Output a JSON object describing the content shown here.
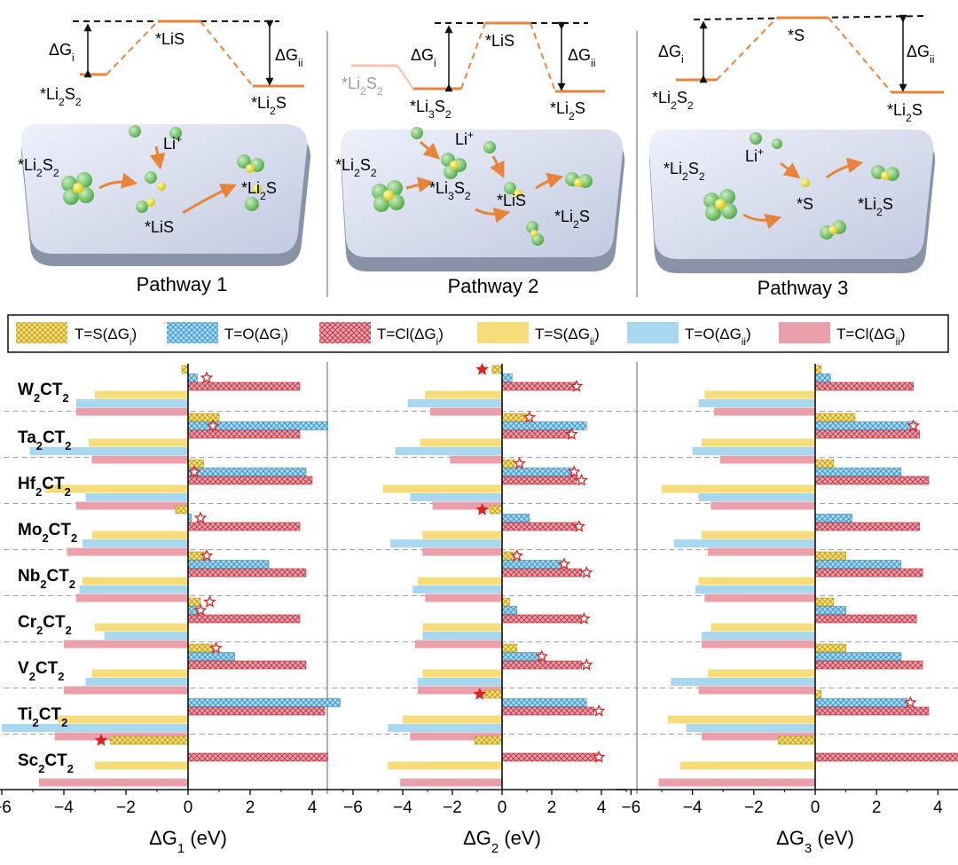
{
  "colors": {
    "S": "#f7dd7a",
    "S_hatch": "#b59a12",
    "O": "#a8d8f0",
    "O_hatch": "#2f8fc0",
    "Cl": "#eaa0aa",
    "Cl_hatch": "#b4303e",
    "level_line": "#e8843a",
    "star": "#e02020",
    "grid": "#9aa0aa"
  },
  "pathways": [
    {
      "title": "Pathway 1",
      "dg_i": "ΔGi",
      "dg_ii": "ΔGii",
      "left_species": "*Li2S2",
      "middle_species": "*LiS",
      "right_species": "*Li2S",
      "surface_labels": [
        "*Li2S2",
        "Li+",
        "*LiS",
        "*Li2S"
      ]
    },
    {
      "title": "Pathway 2",
      "dg_i": "ΔGi",
      "dg_ii": "ΔGii",
      "faded_species": "*Li2S2",
      "left_species": "*Li3S2",
      "middle_species": "*LiS",
      "right_species": "*Li2S",
      "surface_labels": [
        "*Li2S2",
        "Li+",
        "*Li3S2",
        "*LiS",
        "*Li2S"
      ]
    },
    {
      "title": "Pathway 3",
      "dg_i": "ΔGi",
      "dg_ii": "ΔGii",
      "left_species": "*Li2S2",
      "middle_species": "*S",
      "right_species": "*Li2S",
      "surface_labels": [
        "*Li2S2",
        "Li+",
        "*S",
        "*Li2S"
      ]
    }
  ],
  "legend": [
    {
      "label": "T=S(ΔGi)",
      "termination": "S",
      "step": "i"
    },
    {
      "label": "T=O(ΔGi)",
      "termination": "O",
      "step": "i"
    },
    {
      "label": "T=Cl(ΔGi)",
      "termination": "Cl",
      "step": "i"
    },
    {
      "label": "T=S(ΔGii)",
      "termination": "S",
      "step": "ii"
    },
    {
      "label": "T=O(ΔGii)",
      "termination": "O",
      "step": "ii"
    },
    {
      "label": "T=Cl(ΔGii)",
      "termination": "Cl",
      "step": "ii"
    }
  ],
  "chart_data": [
    {
      "type": "bar",
      "orientation": "horizontal",
      "xlabel": "ΔG1 (eV)",
      "xlim": [
        -6.5,
        5
      ],
      "xticks": [
        -6,
        -4,
        -2,
        0,
        2,
        4
      ],
      "categories": [
        "W2CT2",
        "Ta2CT2",
        "Hf2CT2",
        "Mo2CT2",
        "Nb2CT2",
        "Cr2CT2",
        "V2CT2",
        "Ti2CT2",
        "Sc2CT2"
      ],
      "series": [
        {
          "name": "T=S(ΔGi)",
          "values": [
            -0.2,
            1.0,
            0.5,
            -0.4,
            0.6,
            0.4,
            0.8,
            0.0,
            -2.5
          ]
        },
        {
          "name": "T=O(ΔGi)",
          "values": [
            0.3,
            4.5,
            3.8,
            0.1,
            2.6,
            0.3,
            1.5,
            4.9,
            0.0
          ]
        },
        {
          "name": "T=Cl(ΔGi)",
          "values": [
            3.6,
            3.6,
            4.0,
            3.6,
            3.8,
            3.6,
            3.8,
            4.4,
            4.5
          ]
        },
        {
          "name": "T=S(ΔGii)",
          "values": [
            -3.0,
            -3.2,
            -4.6,
            -3.1,
            -3.4,
            -3.0,
            -3.1,
            -4.2,
            -3.0
          ]
        },
        {
          "name": "T=O(ΔGii)",
          "values": [
            -3.6,
            -5.1,
            -3.3,
            -3.4,
            -3.5,
            -2.7,
            -3.3,
            -6.0,
            0.0
          ]
        },
        {
          "name": "T=Cl(ΔGii)",
          "values": [
            -3.6,
            -3.1,
            -3.6,
            -3.9,
            -3.6,
            -4.0,
            -4.0,
            -4.3,
            -4.8
          ]
        }
      ],
      "stars": [
        {
          "category": "W2CT2",
          "series": "T=O(ΔGi)",
          "x": 0.6
        },
        {
          "category": "Ta2CT2",
          "series": "T=O(ΔGi)",
          "x": 0.8
        },
        {
          "category": "Hf2CT2",
          "series": "T=O(ΔGi)",
          "x": 0.2
        },
        {
          "category": "Mo2CT2",
          "series": "T=O(ΔGi)",
          "x": 0.4
        },
        {
          "category": "Nb2CT2",
          "series": "T=S(ΔGi)",
          "x": 0.6
        },
        {
          "category": "Cr2CT2",
          "series": "T=S(ΔGi)",
          "x": 0.7
        },
        {
          "category": "Cr2CT2",
          "series": "T=O(ΔGi)",
          "x": 0.4
        },
        {
          "category": "V2CT2",
          "series": "T=S(ΔGi)",
          "x": 0.9
        },
        {
          "category": "Sc2CT2",
          "series": "T=S(ΔGi)",
          "x": -2.8,
          "filled": true
        }
      ]
    },
    {
      "type": "bar",
      "orientation": "horizontal",
      "xlabel": "ΔG2 (eV)",
      "xlim": [
        -6.5,
        5
      ],
      "xticks": [
        -6,
        -4,
        -2,
        0,
        2,
        4
      ],
      "categories": [
        "W2CT2",
        "Ta2CT2",
        "Hf2CT2",
        "Mo2CT2",
        "Nb2CT2",
        "Cr2CT2",
        "V2CT2",
        "Ti2CT2",
        "Sc2CT2"
      ],
      "series": [
        {
          "name": "T=S(ΔGi)",
          "values": [
            -0.4,
            1.0,
            0.5,
            -0.5,
            0.5,
            0.3,
            0.6,
            -0.7,
            -1.1
          ]
        },
        {
          "name": "T=O(ΔGi)",
          "values": [
            0.4,
            3.4,
            2.9,
            1.1,
            2.4,
            0.6,
            1.6,
            3.4,
            0.0
          ]
        },
        {
          "name": "T=Cl(ΔGi)",
          "values": [
            3.0,
            2.8,
            3.0,
            3.0,
            3.2,
            3.2,
            3.2,
            3.7,
            3.9
          ]
        },
        {
          "name": "T=S(ΔGii)",
          "values": [
            -3.1,
            -3.3,
            -4.8,
            -3.2,
            -3.4,
            -3.2,
            -3.2,
            -4.0,
            -4.6
          ]
        },
        {
          "name": "T=O(ΔGii)",
          "values": [
            -3.8,
            -4.3,
            -3.7,
            -4.5,
            -3.6,
            -3.2,
            -3.4,
            -4.6,
            0.0
          ]
        },
        {
          "name": "T=Cl(ΔGii)",
          "values": [
            -2.9,
            -2.1,
            -2.8,
            -3.2,
            -3.1,
            -3.5,
            -3.4,
            -3.7,
            -4.1
          ]
        }
      ],
      "stars": [
        {
          "category": "W2CT2",
          "series": "T=S(ΔGi)",
          "x": -0.8,
          "filled": true
        },
        {
          "category": "W2CT2",
          "series": "T=Cl(ΔGi)",
          "x": 3.0
        },
        {
          "category": "Ta2CT2",
          "series": "T=S(ΔGi)",
          "x": 1.1
        },
        {
          "category": "Ta2CT2",
          "series": "T=Cl(ΔGi)",
          "x": 2.8
        },
        {
          "category": "Hf2CT2",
          "series": "T=S(ΔGi)",
          "x": 0.7
        },
        {
          "category": "Hf2CT2",
          "series": "T=O(ΔGi)",
          "x": 2.9
        },
        {
          "category": "Hf2CT2",
          "series": "T=Cl(ΔGi)",
          "x": 3.2
        },
        {
          "category": "Mo2CT2",
          "series": "T=S(ΔGi)",
          "x": -0.8,
          "filled": true
        },
        {
          "category": "Mo2CT2",
          "series": "T=Cl(ΔGi)",
          "x": 3.1
        },
        {
          "category": "Nb2CT2",
          "series": "T=S(ΔGi)",
          "x": 0.6
        },
        {
          "category": "Nb2CT2",
          "series": "T=O(ΔGi)",
          "x": 2.5
        },
        {
          "category": "Nb2CT2",
          "series": "T=Cl(ΔGi)",
          "x": 3.4
        },
        {
          "category": "Cr2CT2",
          "series": "T=Cl(ΔGi)",
          "x": 3.3
        },
        {
          "category": "V2CT2",
          "series": "T=O(ΔGi)",
          "x": 1.6
        },
        {
          "category": "V2CT2",
          "series": "T=Cl(ΔGi)",
          "x": 3.4
        },
        {
          "category": "Ti2CT2",
          "series": "T=S(ΔGi)",
          "x": -0.9,
          "filled": true
        },
        {
          "category": "Ti2CT2",
          "series": "T=Cl(ΔGi)",
          "x": 3.9
        },
        {
          "category": "Sc2CT2",
          "series": "T=Cl(ΔGi)",
          "x": 3.9
        }
      ]
    },
    {
      "type": "bar",
      "orientation": "horizontal",
      "xlabel": "ΔG3 (eV)",
      "xlim": [
        -6.5,
        5
      ],
      "xticks": [
        -6,
        -4,
        -2,
        0,
        2,
        4
      ],
      "categories": [
        "W2CT2",
        "Ta2CT2",
        "Hf2CT2",
        "Mo2CT2",
        "Nb2CT2",
        "Cr2CT2",
        "V2CT2",
        "Ti2CT2",
        "Sc2CT2"
      ],
      "series": [
        {
          "name": "T=S(ΔGi)",
          "values": [
            0.2,
            1.3,
            0.6,
            0.0,
            1.0,
            0.6,
            1.0,
            0.2,
            -1.2
          ]
        },
        {
          "name": "T=O(ΔGi)",
          "values": [
            0.5,
            3.3,
            2.8,
            1.2,
            2.8,
            1.0,
            2.8,
            3.0,
            0.0
          ]
        },
        {
          "name": "T=Cl(ΔGi)",
          "values": [
            3.2,
            3.4,
            3.7,
            3.4,
            3.5,
            3.3,
            3.5,
            3.7,
            4.8
          ]
        },
        {
          "name": "T=S(ΔGii)",
          "values": [
            -3.6,
            -3.7,
            -5.0,
            -3.7,
            -3.8,
            -3.4,
            -3.5,
            -4.8,
            -4.4
          ]
        },
        {
          "name": "T=O(ΔGii)",
          "values": [
            -3.8,
            -4.0,
            -3.8,
            -4.6,
            -3.9,
            -3.7,
            -4.7,
            -4.2,
            0.0
          ]
        },
        {
          "name": "T=Cl(ΔGii)",
          "values": [
            -3.3,
            -3.1,
            -3.4,
            -3.5,
            -3.6,
            -3.7,
            -3.8,
            -3.7,
            -5.1
          ]
        }
      ],
      "stars": [
        {
          "category": "Ta2CT2",
          "series": "T=O(ΔGi)",
          "x": 3.2
        },
        {
          "category": "Ti2CT2",
          "series": "T=O(ΔGi)",
          "x": 3.1
        }
      ]
    }
  ]
}
